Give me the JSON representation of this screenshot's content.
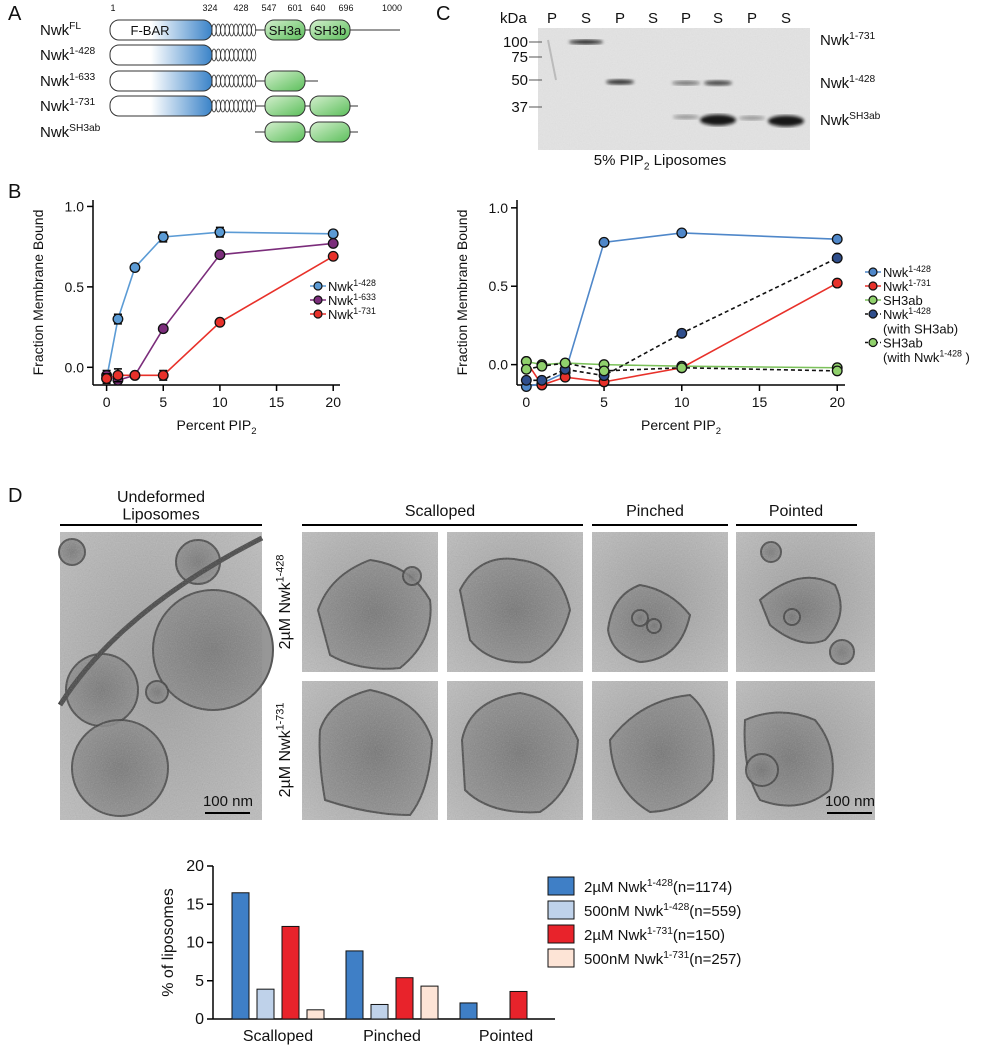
{
  "panel_labels": [
    "A",
    "B",
    "C",
    "D"
  ],
  "domain_diagram": {
    "residues": [
      1,
      324,
      428,
      547,
      601,
      640,
      696,
      1000
    ],
    "domains": [
      "F-BAR",
      "SH3a",
      "SH3b"
    ],
    "constructs": [
      [
        "Nwk",
        {
          "sup": "FL"
        }
      ],
      [
        "Nwk",
        {
          "sup": "1-428"
        }
      ],
      [
        "Nwk",
        {
          "sup": "1-633"
        }
      ],
      [
        "Nwk",
        {
          "sup": "1-731"
        }
      ],
      [
        "Nwk",
        {
          "sup": "SH3ab"
        }
      ]
    ]
  },
  "gel": {
    "unit": "kDa",
    "lanes": [
      "P",
      "S",
      "P",
      "S",
      "P",
      "S",
      "P",
      "S"
    ],
    "markers": [
      100,
      75,
      50,
      37
    ],
    "band_labels": [
      [
        "Nwk",
        {
          "sup": "1-731"
        }
      ],
      [
        "Nwk",
        {
          "sup": "1-428"
        }
      ],
      [
        "Nwk",
        {
          "sup": "SH3ab"
        }
      ]
    ],
    "caption": [
      "5% PIP",
      {
        "sub": "2"
      },
      " Liposomes"
    ]
  },
  "micrographs": {
    "columns": [
      [
        "Undeformed",
        {
          "line": "Liposomes"
        }
      ],
      "Scalloped",
      "Pinched",
      "Pointed"
    ],
    "row_labels": [
      [
        "2µM Nwk",
        {
          "sup": "1-428"
        }
      ],
      [
        "2µM Nwk",
        {
          "sup": "1-731"
        }
      ]
    ],
    "scale_bars": [
      "100 nm",
      "100 nm"
    ]
  },
  "chart_data": [
    {
      "type": "line",
      "x": [
        0,
        1,
        2.5,
        5,
        10,
        20
      ],
      "xlim": [
        -1.2,
        20.6
      ],
      "xticks": [
        0,
        5,
        10,
        15,
        20
      ],
      "ylim": [
        -0.11,
        1.04
      ],
      "yticks": [
        {
          "value": 0,
          "label": "0.0"
        },
        {
          "value": 0.5,
          "label": "0.5"
        },
        {
          "value": 1,
          "label": "1.0"
        }
      ],
      "xlabel": [
        "Percent PIP",
        {
          "sub": "2"
        }
      ],
      "ylabel": "Fraction Membrane Bound",
      "legend": "right",
      "series": [
        {
          "name": [
            "Nwk",
            {
              "sup": "1-428"
            }
          ],
          "color": "#5b9bd5",
          "line_color": "#5b9bd5",
          "dashed": false,
          "values": [
            -0.07,
            0.3,
            0.62,
            0.81,
            0.84,
            0.83
          ],
          "errors": [
            0.02,
            0.03,
            0.02,
            0.03,
            0.03,
            0.02
          ]
        },
        {
          "name": [
            "Nwk",
            {
              "sup": "1-633"
            }
          ],
          "color": "#7b2d7b",
          "line_color": "#7b2d7b",
          "dashed": false,
          "values": [
            -0.05,
            -0.08,
            -0.05,
            0.24,
            0.7,
            0.77
          ],
          "errors": [
            0.03,
            0.02,
            0.01,
            0.01,
            0.01,
            0.01
          ]
        },
        {
          "name": [
            "Nwk",
            {
              "sup": "1-731"
            }
          ],
          "color": "#e8312a",
          "line_color": "#e8312a",
          "dashed": false,
          "values": [
            -0.07,
            -0.05,
            -0.05,
            -0.05,
            0.28,
            0.69
          ],
          "errors": [
            0.03,
            0.04,
            0.01,
            0.03,
            0.01,
            0.01
          ]
        }
      ]
    },
    {
      "type": "line",
      "x": [
        0,
        1,
        2.5,
        5,
        10,
        20
      ],
      "xlim": [
        -0.6,
        20.5
      ],
      "xticks": [
        0,
        5,
        10,
        15,
        20
      ],
      "ylim": [
        -0.13,
        1.05
      ],
      "yticks": [
        {
          "value": 0,
          "label": "0.0"
        },
        {
          "value": 0.5,
          "label": "0.5"
        },
        {
          "value": 1,
          "label": "1.0"
        }
      ],
      "xlabel": [
        "Percent PIP",
        {
          "sub": "2"
        }
      ],
      "ylabel": "Fraction Membrane Bound",
      "legend": "outside right",
      "series": [
        {
          "name": [
            "Nwk",
            {
              "sup": "1-428"
            }
          ],
          "color": "#4f87c9",
          "line_color": "#4f87c9",
          "dashed": false,
          "values": [
            -0.14,
            -0.12,
            -0.05,
            0.78,
            0.84,
            0.8
          ]
        },
        {
          "name": [
            "Nwk",
            {
              "sup": "1-731"
            }
          ],
          "color": "#e8312a",
          "line_color": "#e8312a",
          "dashed": false,
          "values": [
            0.02,
            -0.13,
            -0.08,
            -0.11,
            -0.02,
            0.52
          ]
        },
        {
          "name": "SH3ab",
          "color": "#90d16c",
          "line_color": "#7bc15a",
          "dashed": false,
          "values": [
            0.02,
            0.0,
            0.01,
            0.0,
            -0.01,
            -0.02
          ]
        },
        {
          "name": [
            "Nwk",
            {
              "sup": "1-428"
            },
            {
              "line": "(with SH3ab)"
            }
          ],
          "color": "#2f4e8c",
          "line_color": "#111111",
          "dashed": true,
          "values": [
            -0.1,
            -0.1,
            -0.03,
            -0.07,
            0.2,
            0.68
          ]
        },
        {
          "name": [
            "SH3ab",
            {
              "line": "(with Nwk"
            },
            {
              "sup": "1-428"
            },
            " )"
          ],
          "color": "#90d16c",
          "line_color": "#111111",
          "dashed": true,
          "values": [
            -0.03,
            -0.01,
            0.01,
            -0.04,
            -0.02,
            -0.04
          ]
        }
      ]
    },
    {
      "type": "bar",
      "categories": [
        "Scalloped",
        "Pinched",
        "Pointed"
      ],
      "ylim": [
        0,
        20
      ],
      "yticks": [
        0,
        5,
        10,
        15,
        20
      ],
      "ylabel": "% of liposomes",
      "legend": "outside right",
      "series": [
        {
          "name": [
            "2µM Nwk",
            {
              "sup": "1-428"
            },
            "(n=1174)"
          ],
          "color": "#3f7fc6",
          "values": [
            16.5,
            8.9,
            2.1
          ]
        },
        {
          "name": [
            "500nM Nwk",
            {
              "sup": "1-428"
            },
            "(n=559)"
          ],
          "color": "#bfd2ea",
          "values": [
            3.9,
            1.9,
            0
          ]
        },
        {
          "name": [
            "2µM Nwk",
            {
              "sup": "1-731"
            },
            "(n=150)"
          ],
          "color": "#e8232b",
          "values": [
            12.1,
            5.4,
            3.6
          ]
        },
        {
          "name": [
            "500nM Nwk",
            {
              "sup": "1-731"
            },
            "(n=257)"
          ],
          "color": "#fde4d6",
          "values": [
            1.2,
            4.3,
            0
          ]
        }
      ]
    }
  ]
}
